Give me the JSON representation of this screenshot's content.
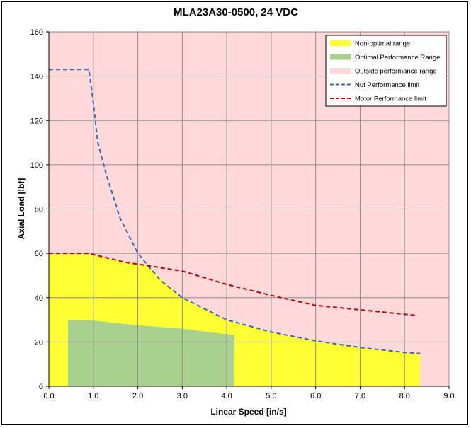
{
  "chart_data": {
    "type": "area",
    "title": "MLA23A30-0500, 24 VDC",
    "xlabel": "Linear Speed [in/s]",
    "ylabel": "Axial Load [lbf]",
    "xlim": [
      0,
      9
    ],
    "ylim": [
      0,
      160
    ],
    "x_ticks": [
      "0.0",
      "1.0",
      "2.0",
      "3.0",
      "4.0",
      "5.0",
      "6.0",
      "7.0",
      "8.0",
      "9.0"
    ],
    "y_ticks": [
      "0",
      "20",
      "40",
      "60",
      "80",
      "100",
      "120",
      "140",
      "160"
    ],
    "grid": true,
    "legend_position": "top-right",
    "series": [
      {
        "name": "Non-optimal range",
        "kind": "area",
        "color": "#ffff33",
        "x": [
          0,
          0.9,
          1.5,
          2.2,
          3.0,
          4.0,
          5.0,
          6.0,
          7.0,
          8.0,
          8.35,
          8.35,
          0
        ],
        "y": [
          60,
          60,
          57,
          54.5,
          40,
          30,
          24.5,
          20.5,
          17.5,
          15.3,
          14.8,
          0,
          0
        ]
      },
      {
        "name": "Optimal Performance Range",
        "kind": "area",
        "color": "#a9d18e",
        "x": [
          0.43,
          0.95,
          2.0,
          3.0,
          3.7,
          4.17,
          4.17,
          0.43
        ],
        "y": [
          29.8,
          29.8,
          27.5,
          26,
          24.2,
          23.2,
          0,
          0
        ]
      },
      {
        "name": "Outside performance range",
        "kind": "background",
        "color": "#ffd9d9"
      },
      {
        "name": "Nut Performance limit",
        "kind": "dashed-line",
        "color": "#3f64b5",
        "x": [
          0,
          0.85,
          0.9,
          1.0,
          1.1,
          1.3,
          1.6,
          2.0,
          2.5,
          3.0,
          4.0,
          5.0,
          6.0,
          7.0,
          8.0,
          8.35
        ],
        "y": [
          143,
          143,
          143,
          128,
          110,
          95,
          76,
          60,
          48,
          40,
          30,
          24.5,
          20.5,
          17.5,
          15.3,
          14.8
        ]
      },
      {
        "name": "Motor Performance limit",
        "kind": "dashed-line",
        "color": "#c00000",
        "x": [
          0,
          0.9,
          1.3,
          1.7,
          2.2,
          3.0,
          4.0,
          5.0,
          6.0,
          7.0,
          8.25
        ],
        "y": [
          60,
          60,
          58,
          56,
          54.5,
          52,
          46,
          41,
          36.5,
          34.5,
          32
        ]
      }
    ]
  }
}
